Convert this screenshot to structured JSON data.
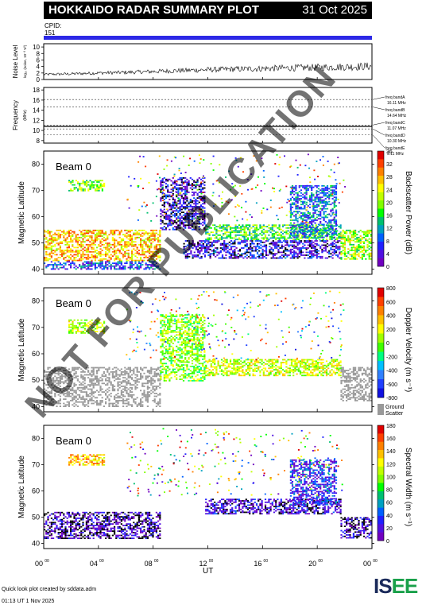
{
  "header": {
    "title": "HOKKAIDO RADAR SUMMARY PLOT",
    "date": "31 Oct 2025",
    "cpid_label": "CPID:",
    "cpid_value": "151"
  },
  "colors": {
    "cpid_bar": "#2c28e6",
    "ground_scatter": "#999999"
  },
  "noise_panel": {
    "ylabel": "Noise Level",
    "ylabel_sub": "log₁₀ (noise, 10⁻³ V²)",
    "yticks": [
      "10",
      "8",
      "6",
      "4",
      "2",
      "0"
    ]
  },
  "freq_panel": {
    "ylabel": "Frequency",
    "ylabel_sub": "(MHz)",
    "yticks": [
      "18",
      "16",
      "14",
      "12",
      "10",
      "8"
    ],
    "bands": [
      {
        "label": "freq bandA",
        "value": "16.11 MHz"
      },
      {
        "label": "freq bandB",
        "value": "14.64 MHz"
      },
      {
        "label": "freq bandC",
        "value": "11.07 MHz"
      },
      {
        "label": "freq bandD",
        "value": "10.30 MHz"
      },
      {
        "label": "freq bandE",
        "value": "9.11 MHz"
      }
    ]
  },
  "panels": [
    {
      "beam_label": "Beam  0",
      "ylabel": "Magnetic Latitude",
      "yticks": [
        "80",
        "70",
        "60",
        "50",
        "40"
      ],
      "cbar_label": "Backscatter Power (dB)",
      "cbar_ticks": [
        "36",
        "32",
        "28",
        "24",
        "20",
        "16",
        "12",
        "8",
        "4",
        "0"
      ]
    },
    {
      "beam_label": "Beam  0",
      "ylabel": "Magnetic Latitude",
      "yticks": [
        "80",
        "70",
        "60",
        "50",
        "40"
      ],
      "cbar_label": "Doppler Velocity (m s⁻¹)",
      "cbar_ticks": [
        "800",
        "600",
        "400",
        "200",
        "0",
        "-200",
        "-400",
        "-600",
        "-800"
      ],
      "gs_label_1": "Ground",
      "gs_label_2": "Scatter"
    },
    {
      "beam_label": "Beam  0",
      "ylabel": "Magnetic Latitude",
      "yticks": [
        "80",
        "70",
        "60",
        "50",
        "40"
      ],
      "cbar_label": "Spectral Width (m s⁻¹)",
      "cbar_ticks": [
        "180",
        "160",
        "140",
        "120",
        "100",
        "80",
        "60",
        "40",
        "20",
        "0"
      ]
    }
  ],
  "xaxis": {
    "ticks": [
      "00⁰⁰",
      "04⁰⁰",
      "08⁰⁰",
      "12⁰⁰",
      "16⁰⁰",
      "20⁰⁰",
      "00⁰⁰"
    ],
    "label": "UT"
  },
  "footer": {
    "line1": "Quick look plot created by sddata.adm",
    "line2": "01:13 UT  1 Nov 2025"
  },
  "logo": {
    "text_a": "IS",
    "text_b": "EE"
  },
  "watermark": "NOT FOR PUBLICATION",
  "chart_data": [
    {
      "type": "line",
      "name": "noise-level",
      "ylabel": "Noise Level",
      "ylim": [
        0,
        11
      ],
      "xlim": [
        0,
        24
      ],
      "x": [
        0,
        2,
        4,
        6,
        8,
        10,
        12,
        14,
        16,
        18,
        20,
        22,
        24
      ],
      "values": [
        1.2,
        1.3,
        1.5,
        1.6,
        1.8,
        2.0,
        2.2,
        2.3,
        2.4,
        2.5,
        2.6,
        2.7,
        2.8
      ]
    },
    {
      "type": "line",
      "name": "frequency",
      "ylabel": "Frequency",
      "ylim": [
        7.5,
        18.5
      ],
      "xlim": [
        0,
        24
      ],
      "band_values": [
        16.11,
        14.64,
        11.07,
        10.3,
        9.11
      ],
      "series": [
        {
          "x": [
            0,
            24
          ],
          "values": [
            10.8,
            10.8
          ]
        }
      ]
    },
    {
      "type": "heatmap",
      "name": "backscatter-power",
      "xlim": [
        0,
        24
      ],
      "ylim": [
        38,
        85
      ],
      "zlim": [
        0,
        38
      ],
      "regions": [
        {
          "x": [
            0,
            8.5
          ],
          "y": [
            43,
            55
          ],
          "value": 28
        },
        {
          "x": [
            0,
            8.5
          ],
          "y": [
            40,
            43
          ],
          "value": 8
        },
        {
          "x": [
            1.8,
            4.4
          ],
          "y": [
            70,
            74
          ],
          "value": 20
        },
        {
          "x": [
            10.2,
            21.7
          ],
          "y": [
            44,
            51
          ],
          "value": 4
        },
        {
          "x": [
            11.8,
            21.7
          ],
          "y": [
            51,
            57
          ],
          "value": 18
        },
        {
          "x": [
            18,
            21.4
          ],
          "y": [
            52,
            72
          ],
          "value": 10
        },
        {
          "x": [
            21.7,
            23.9
          ],
          "y": [
            44,
            55
          ],
          "value": 22
        },
        {
          "x": [
            8.5,
            11.8
          ],
          "y": [
            55,
            75
          ],
          "value": 3
        }
      ]
    },
    {
      "type": "heatmap",
      "name": "doppler-velocity",
      "xlim": [
        0,
        24
      ],
      "ylim": [
        38,
        85
      ],
      "zlim": [
        -900,
        900
      ],
      "regions": [
        {
          "x": [
            0,
            8.5
          ],
          "y": [
            40,
            55
          ],
          "value": "ground-scatter"
        },
        {
          "x": [
            21.7,
            23.9
          ],
          "y": [
            42,
            55
          ],
          "value": "ground-scatter"
        },
        {
          "x": [
            1.8,
            4.4
          ],
          "y": [
            68,
            73
          ],
          "value": -100
        },
        {
          "x": [
            11.8,
            21.7
          ],
          "y": [
            52,
            58
          ],
          "value": -150
        },
        {
          "x": [
            8.5,
            11.8
          ],
          "y": [
            50,
            75
          ],
          "value": 0
        }
      ]
    },
    {
      "type": "heatmap",
      "name": "spectral-width",
      "xlim": [
        0,
        24
      ],
      "ylim": [
        38,
        85
      ],
      "zlim": [
        0,
        190
      ],
      "regions": [
        {
          "x": [
            0,
            8.5
          ],
          "y": [
            42,
            52
          ],
          "value": 8
        },
        {
          "x": [
            1.8,
            4.4
          ],
          "y": [
            70,
            74
          ],
          "value": 140
        },
        {
          "x": [
            11.8,
            21.7
          ],
          "y": [
            51,
            57
          ],
          "value": 15
        },
        {
          "x": [
            18,
            21.4
          ],
          "y": [
            55,
            72
          ],
          "value": 30
        },
        {
          "x": [
            21.7,
            23.9
          ],
          "y": [
            42,
            50
          ],
          "value": 10
        }
      ]
    }
  ]
}
